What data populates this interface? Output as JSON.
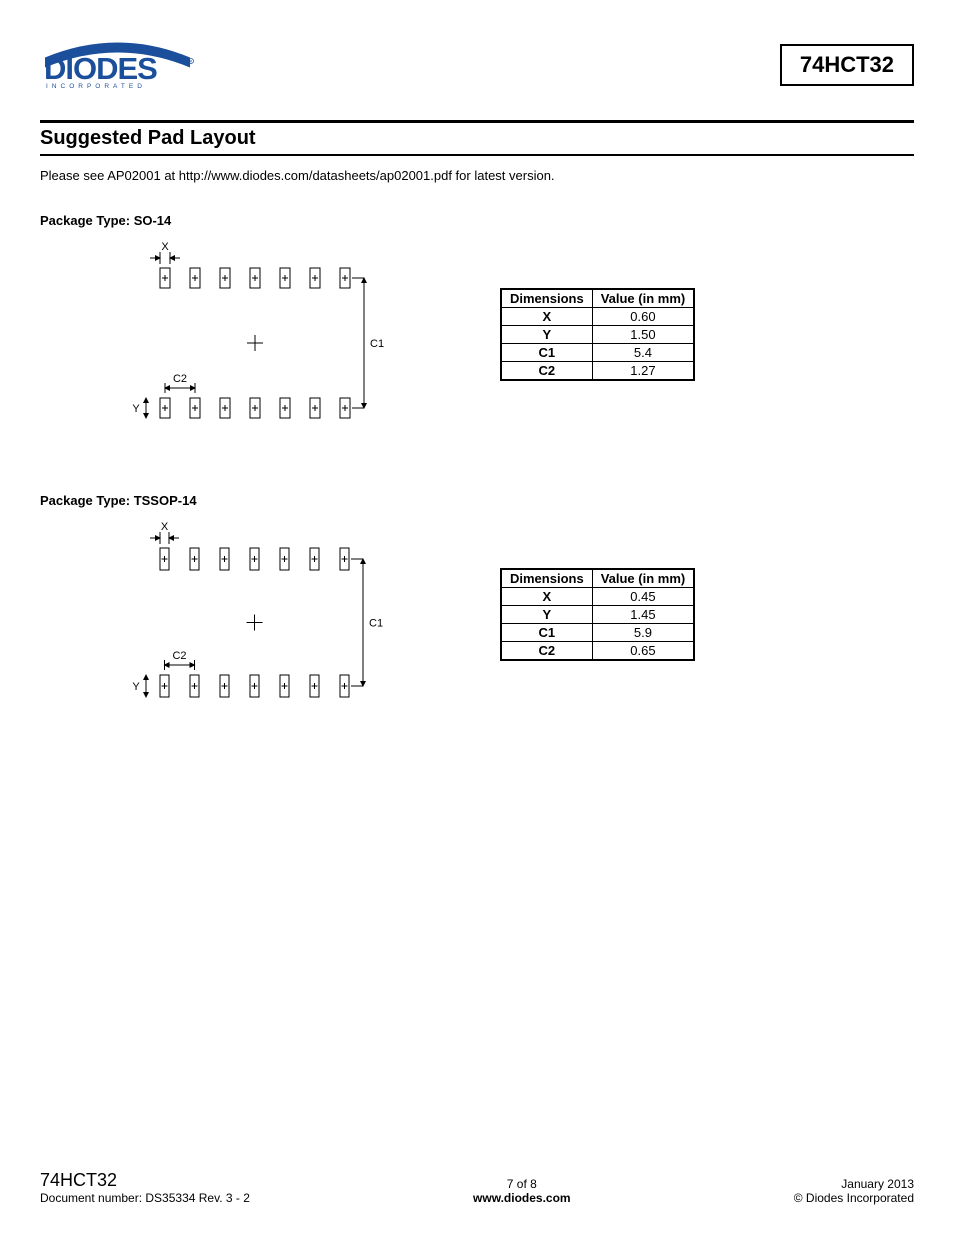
{
  "header": {
    "part_number": "74HCT32",
    "logo": {
      "main": "DIODES",
      "sub": "I N C O R P O R A T E D",
      "blue": "#1b4f9c",
      "swoosh": "#1b4f9c"
    }
  },
  "section": {
    "title": "Suggested Pad Layout",
    "note": "Please see AP02001 at http://www.diodes.com/datasheets/ap02001.pdf for latest version."
  },
  "packages": [
    {
      "label": "Package Type: SO-14",
      "diagram": {
        "pads_per_row": 7,
        "pad_w": 10,
        "pad_h": 20,
        "pad_spacing": 30,
        "row_gap": 110,
        "labels": {
          "X": "X",
          "Y": "Y",
          "C1": "C1",
          "C2": "C2"
        }
      },
      "table": {
        "headers": [
          "Dimensions",
          "Value (in mm)"
        ],
        "rows": [
          [
            "X",
            "0.60"
          ],
          [
            "Y",
            "1.50"
          ],
          [
            "C1",
            "5.4"
          ],
          [
            "C2",
            "1.27"
          ]
        ]
      }
    },
    {
      "label": "Package Type: TSSOP-14",
      "diagram": {
        "pads_per_row": 7,
        "pad_w": 9,
        "pad_h": 22,
        "pad_spacing": 30,
        "row_gap": 105,
        "labels": {
          "X": "X",
          "Y": "Y",
          "C1": "C1",
          "C2": "C2"
        }
      },
      "table": {
        "headers": [
          "Dimensions",
          "Value (in mm)"
        ],
        "rows": [
          [
            "X",
            "0.45"
          ],
          [
            "Y",
            "1.45"
          ],
          [
            "C1",
            "5.9"
          ],
          [
            "C2",
            "0.65"
          ]
        ]
      }
    }
  ],
  "footer": {
    "part_number": "74HCT32",
    "doc": "Document number: DS35334  Rev. 3 - 2",
    "page": "7 of 8",
    "url": "www.diodes.com",
    "date": "January 2013",
    "copyright": "© Diodes Incorporated"
  }
}
